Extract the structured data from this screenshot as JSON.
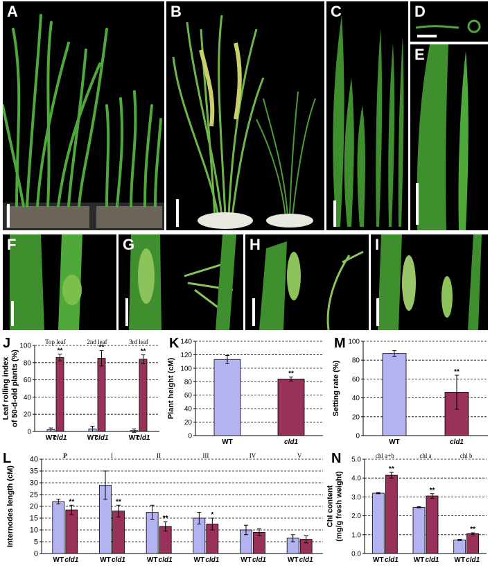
{
  "photos": [
    {
      "id": "A",
      "label": "A"
    },
    {
      "id": "B",
      "label": "B"
    },
    {
      "id": "C",
      "label": "C"
    },
    {
      "id": "D",
      "label": "D"
    },
    {
      "id": "E",
      "label": "E"
    },
    {
      "id": "F",
      "label": "F"
    },
    {
      "id": "G",
      "label": "G"
    },
    {
      "id": "H",
      "label": "H"
    },
    {
      "id": "I",
      "label": "I"
    }
  ],
  "colors": {
    "wt": "#b3b3f2",
    "cld1": "#99325a",
    "photo_bg": "#000000",
    "leaf": "#3f8f2e"
  },
  "chart_data": [
    {
      "id": "J",
      "panel_label": "J",
      "type": "bar",
      "ylabel": "Leaf rolling index of 50-d-old plants (%)",
      "ylabel_lines": [
        "Leaf rolling index",
        "of 50-d-old plants (%)"
      ],
      "ylim": [
        0,
        100
      ],
      "yticks": [
        0,
        20,
        40,
        60,
        80,
        100
      ],
      "grid": true,
      "groups": [
        "Top leaf",
        "2nd leaf",
        "3rd leaf"
      ],
      "xtick_labels": [
        "WT",
        "cld1",
        "WT",
        "cld1",
        "WT",
        "cld1"
      ],
      "series": [
        {
          "key": "wt",
          "values": [
            2,
            3,
            1
          ],
          "errors": [
            2,
            3,
            2
          ],
          "sig": [
            "",
            "",
            ""
          ]
        },
        {
          "key": "cld1",
          "values": [
            86,
            85,
            84
          ],
          "errors": [
            4,
            9,
            5
          ],
          "sig": [
            "**",
            "**",
            "**"
          ]
        }
      ]
    },
    {
      "id": "K",
      "panel_label": "K",
      "type": "bar",
      "ylabel": "Plant height (cM)",
      "ylim": [
        0,
        140
      ],
      "yticks": [
        0,
        20,
        40,
        60,
        80,
        100,
        120,
        140
      ],
      "grid": true,
      "categories": [
        "WT",
        "cld1"
      ],
      "values": [
        113,
        84
      ],
      "errors": [
        6,
        3
      ],
      "sig": [
        "",
        "**"
      ]
    },
    {
      "id": "M",
      "panel_label": "M",
      "type": "bar",
      "ylabel": "Setting rate (%)",
      "ylim": [
        0,
        100
      ],
      "yticks": [
        0,
        20,
        40,
        60,
        80,
        100
      ],
      "grid": true,
      "categories": [
        "WT",
        "cld1"
      ],
      "values": [
        87,
        46
      ],
      "errors": [
        3,
        18
      ],
      "sig": [
        "",
        "**"
      ]
    },
    {
      "id": "L",
      "panel_label": "L",
      "type": "bar",
      "ylabel": "Internodes length (cM)",
      "ylim": [
        0,
        40
      ],
      "yticks": [
        0,
        5,
        10,
        15,
        20,
        25,
        30,
        35,
        40
      ],
      "grid": true,
      "groups": [
        "P",
        "I",
        "II",
        "III",
        "IV",
        "V"
      ],
      "xtick_labels": [
        "WT",
        "cld1",
        "WT",
        "cld1",
        "WT",
        "cld1",
        "WT",
        "cld1",
        "WT",
        "cld1",
        "WT",
        "cld1"
      ],
      "series": [
        {
          "key": "wt",
          "values": [
            22,
            29,
            17.5,
            15,
            10,
            6.5
          ],
          "errors": [
            1,
            6,
            3,
            2.5,
            2,
            1.5
          ],
          "sig": [
            "",
            "",
            "",
            "",
            "",
            ""
          ]
        },
        {
          "key": "cld1",
          "values": [
            18.5,
            18,
            11.5,
            12.5,
            9,
            6
          ],
          "errors": [
            2,
            2.5,
            2,
            2.5,
            1.5,
            1.5
          ],
          "sig": [
            "**",
            "**",
            "**",
            "*",
            "",
            ""
          ]
        }
      ]
    },
    {
      "id": "N",
      "panel_label": "N",
      "type": "bar",
      "ylabel": "Chl content (mg/g fresh weight)",
      "ylabel_lines": [
        "Chl content",
        "(mg/g fresh weight)"
      ],
      "ylim": [
        0,
        5
      ],
      "yticks": [
        "0.0",
        "1.0",
        "2.0",
        "3.0",
        "4.0",
        "5.0"
      ],
      "grid": true,
      "groups": [
        "chl a+b",
        "chl a",
        "chl b"
      ],
      "xtick_labels": [
        "WT",
        "cld1",
        "WT",
        "cld1",
        "WT",
        "cld1"
      ],
      "series": [
        {
          "key": "wt",
          "values": [
            3.2,
            2.45,
            0.72
          ],
          "errors": [
            0.03,
            0.03,
            0.03
          ],
          "sig": [
            "",
            "",
            ""
          ]
        },
        {
          "key": "cld1",
          "values": [
            4.15,
            3.05,
            1.05
          ],
          "errors": [
            0.15,
            0.12,
            0.05
          ],
          "sig": [
            "**",
            "**",
            "**"
          ]
        }
      ]
    }
  ]
}
